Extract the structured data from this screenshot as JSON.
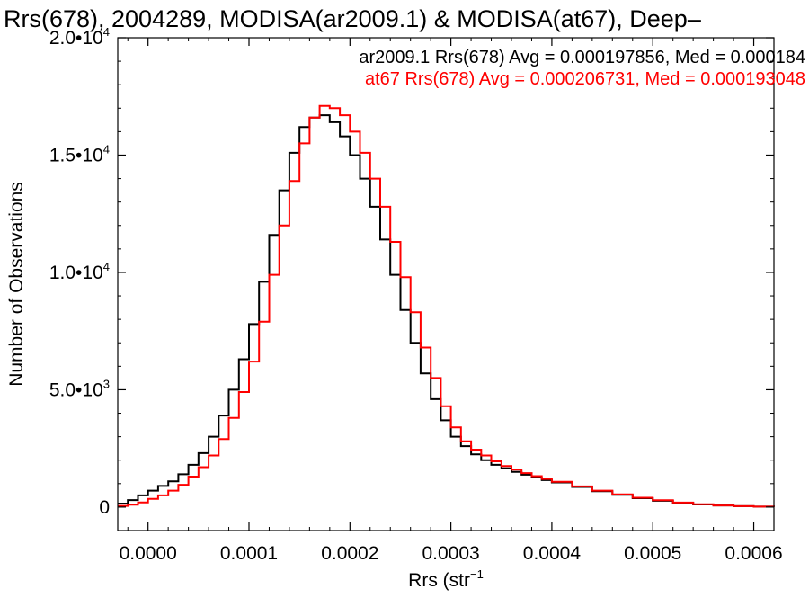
{
  "chart_data": {
    "type": "line",
    "title": "Rrs(678), 2004289, MODISA(ar2009.1) & MODISA(at67), Deep–",
    "xlabel": "Rrs (str⁻¹)",
    "ylabel": "Number of Observations",
    "xlim": [
      -3e-05,
      0.00062
    ],
    "ylim": [
      -1000,
      20000
    ],
    "x_ticks": [
      {
        "value": 0.0,
        "label": "0.0000"
      },
      {
        "value": 0.0001,
        "label": "0.0001"
      },
      {
        "value": 0.0002,
        "label": "0.0002"
      },
      {
        "value": 0.0003,
        "label": "0.0003"
      },
      {
        "value": 0.0004,
        "label": "0.0004"
      },
      {
        "value": 0.0005,
        "label": "0.0005"
      },
      {
        "value": 0.0006,
        "label": "0.0006"
      }
    ],
    "y_ticks": [
      {
        "value": 0,
        "mant": "0",
        "exp": ""
      },
      {
        "value": 5000,
        "mant": "5.0•10",
        "exp": "3"
      },
      {
        "value": 10000,
        "mant": "1.0•10",
        "exp": "4"
      },
      {
        "value": 15000,
        "mant": "1.5•10",
        "exp": "4"
      },
      {
        "value": 20000,
        "mant": "2.0•10",
        "exp": "4"
      }
    ],
    "grid": false,
    "step": true,
    "legend_position": "top-right",
    "series": [
      {
        "name": "ar2009.1",
        "color": "#000000",
        "legend": "ar2009.1 Rrs(678) Avg = 0.000197856, Med = 0.000184",
        "x": [
          -3e-05,
          -2e-05,
          -1e-05,
          0.0,
          1e-05,
          2e-05,
          3e-05,
          4e-05,
          5e-05,
          6e-05,
          7e-05,
          8e-05,
          9e-05,
          0.0001,
          0.00011,
          0.00012,
          0.00013,
          0.00014,
          0.00015,
          0.00016,
          0.00017,
          0.00018,
          0.00019,
          0.0002,
          0.00021,
          0.00022,
          0.00023,
          0.00024,
          0.00025,
          0.00026,
          0.00027,
          0.00028,
          0.00029,
          0.0003,
          0.00031,
          0.00032,
          0.00033,
          0.00034,
          0.00035,
          0.00036,
          0.00037,
          0.00038,
          0.00039,
          0.0004,
          0.00042,
          0.00044,
          0.00046,
          0.00048,
          0.0005,
          0.00052,
          0.00054,
          0.00056,
          0.00058,
          0.0006,
          0.00062
        ],
        "y": [
          150,
          300,
          500,
          700,
          900,
          1100,
          1400,
          1800,
          2300,
          3000,
          3900,
          5000,
          6300,
          7800,
          9600,
          11600,
          13500,
          15100,
          16200,
          16600,
          16700,
          16400,
          15800,
          15000,
          14000,
          12800,
          11400,
          9900,
          8400,
          7000,
          5700,
          4600,
          3700,
          3000,
          2600,
          2250,
          2000,
          1800,
          1650,
          1500,
          1380,
          1260,
          1150,
          1050,
          860,
          680,
          520,
          380,
          270,
          180,
          110,
          70,
          40,
          20,
          10
        ]
      },
      {
        "name": "at67",
        "color": "#ff0000",
        "legend": "at67 Rrs(678) Avg = 0.000206731, Med = 0.000193048",
        "x": [
          -3e-05,
          -2e-05,
          -1e-05,
          0.0,
          1e-05,
          2e-05,
          3e-05,
          4e-05,
          5e-05,
          6e-05,
          7e-05,
          8e-05,
          9e-05,
          0.0001,
          0.00011,
          0.00012,
          0.00013,
          0.00014,
          0.00015,
          0.00016,
          0.00017,
          0.00018,
          0.00019,
          0.0002,
          0.00021,
          0.00022,
          0.00023,
          0.00024,
          0.00025,
          0.00026,
          0.00027,
          0.00028,
          0.00029,
          0.0003,
          0.00031,
          0.00032,
          0.00033,
          0.00034,
          0.00035,
          0.00036,
          0.00037,
          0.00038,
          0.00039,
          0.0004,
          0.00042,
          0.00044,
          0.00046,
          0.00048,
          0.0005,
          0.00052,
          0.00054,
          0.00056,
          0.00058,
          0.0006,
          0.00062
        ],
        "y": [
          50,
          100,
          200,
          350,
          500,
          700,
          950,
          1300,
          1700,
          2200,
          2900,
          3800,
          4900,
          6200,
          7900,
          9900,
          12000,
          13900,
          15500,
          16600,
          17100,
          17000,
          16700,
          16000,
          15100,
          14000,
          12800,
          11300,
          9800,
          8300,
          6800,
          5500,
          4300,
          3400,
          2800,
          2450,
          2200,
          1950,
          1750,
          1600,
          1450,
          1320,
          1200,
          1080,
          880,
          700,
          540,
          400,
          290,
          190,
          120,
          70,
          40,
          20,
          10
        ]
      }
    ]
  }
}
